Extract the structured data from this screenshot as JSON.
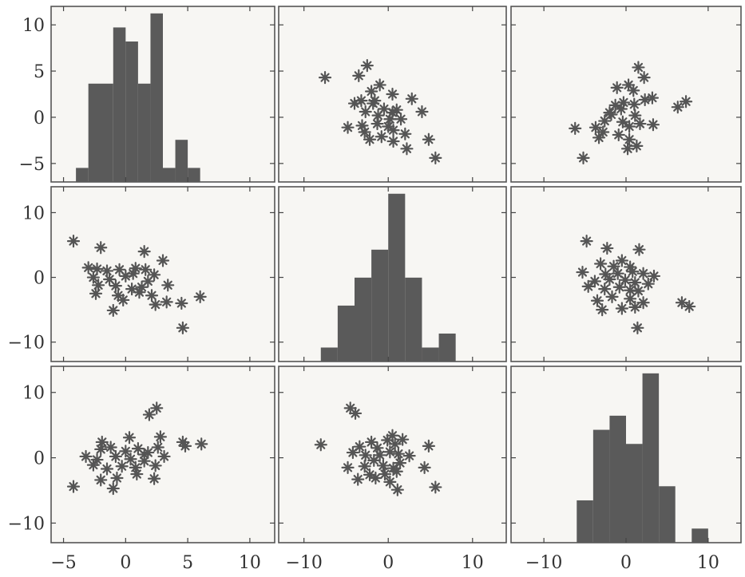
{
  "chart_data": {
    "type": "scatter",
    "grid": false,
    "colors": {
      "bars": "#5a5a5a",
      "markers": "#555555",
      "frame": "#555555",
      "panel_bg": "#f7f6f3"
    },
    "marker": "asterisk",
    "columns": [
      {
        "xlim": [
          -6,
          12
        ],
        "xticks": [
          -5,
          0,
          5,
          10
        ],
        "xtick_labels": [
          "−5",
          "0",
          "5",
          "10"
        ]
      },
      {
        "xlim": [
          -13,
          14
        ],
        "xticks": [
          -10,
          0,
          10
        ],
        "xtick_labels": [
          "−10",
          "0",
          "10"
        ]
      },
      {
        "xlim": [
          -14,
          14
        ],
        "xticks": [
          -10,
          0,
          10
        ],
        "xtick_labels": [
          "−10",
          "0",
          "10"
        ]
      }
    ],
    "rows": [
      {
        "ylim": [
          -7,
          12
        ],
        "yticks": [
          -5,
          0,
          5,
          10
        ],
        "ytick_labels": [
          "−5",
          "0",
          "5",
          "10"
        ]
      },
      {
        "ylim": [
          -13,
          14
        ],
        "yticks": [
          -10,
          0,
          10
        ],
        "ytick_labels": [
          "−10",
          "0",
          "10"
        ]
      },
      {
        "ylim": [
          -13,
          14
        ],
        "yticks": [
          -10,
          0,
          10
        ],
        "ytick_labels": [
          "−10",
          "0",
          "10"
        ]
      }
    ],
    "panels": [
      {
        "row": 0,
        "col": 0,
        "type": "histogram",
        "bins": [
          [
            -4,
            -3,
            1
          ],
          [
            -3,
            -1,
            7
          ],
          [
            -1,
            0,
            11
          ],
          [
            0,
            1,
            10
          ],
          [
            1,
            2,
            7
          ],
          [
            2,
            3,
            12
          ],
          [
            3,
            4,
            1
          ],
          [
            4,
            5,
            3
          ],
          [
            5,
            6,
            1
          ]
        ]
      },
      {
        "row": 0,
        "col": 1,
        "type": "scatter",
        "points": [
          [
            -7.5,
            4.3
          ],
          [
            -3.5,
            4.5
          ],
          [
            -2.5,
            5.6
          ],
          [
            -1,
            3.5
          ],
          [
            -2,
            2.8
          ],
          [
            -1.8,
            1.5
          ],
          [
            0.5,
            2.5
          ],
          [
            2.8,
            2
          ],
          [
            4,
            0.6
          ],
          [
            -4,
            1.5
          ],
          [
            -3.2,
            1.8
          ],
          [
            -2.7,
            0.6
          ],
          [
            -1.2,
            0.2
          ],
          [
            -0.5,
            0.9
          ],
          [
            0.5,
            0.5
          ],
          [
            1.5,
            -0.2
          ],
          [
            -4.8,
            -1.1
          ],
          [
            -2.8,
            -1.6
          ],
          [
            -1.3,
            -0.7
          ],
          [
            0,
            -1
          ],
          [
            0.6,
            -1.4
          ],
          [
            2,
            -1.8
          ],
          [
            -2.2,
            -2.4
          ],
          [
            -0.8,
            -2.1
          ],
          [
            0.6,
            -2.6
          ],
          [
            2.2,
            -3.4
          ],
          [
            4.8,
            -2.4
          ],
          [
            5.6,
            -4.4
          ],
          [
            -1.6,
            1.8
          ],
          [
            0.2,
            -0.2
          ],
          [
            1,
            0.8
          ],
          [
            -3.1,
            -0.9
          ]
        ]
      },
      {
        "row": 0,
        "col": 2,
        "type": "scatter",
        "points": [
          [
            1.5,
            5.4
          ],
          [
            2.2,
            4.3
          ],
          [
            0.3,
            3.5
          ],
          [
            -1.1,
            3.2
          ],
          [
            0.9,
            2.9
          ],
          [
            2.3,
            1.9
          ],
          [
            3.2,
            2.1
          ],
          [
            -1.3,
            1.3
          ],
          [
            -0.3,
            1.6
          ],
          [
            -0.6,
            0.9
          ],
          [
            1,
            1.4
          ],
          [
            6.3,
            1.1
          ],
          [
            7.3,
            1.7
          ],
          [
            -6.2,
            -1.2
          ],
          [
            -3.7,
            -1.1
          ],
          [
            -2.6,
            -0.4
          ],
          [
            -1.8,
            0.3
          ],
          [
            -0.4,
            -0.5
          ],
          [
            0.4,
            -1
          ],
          [
            1.7,
            -0.7
          ],
          [
            3.3,
            -0.8
          ],
          [
            -3.3,
            -2.2
          ],
          [
            -0.9,
            -1.9
          ],
          [
            0.4,
            -2.4
          ],
          [
            1.3,
            -3.1
          ],
          [
            -5.2,
            -4.4
          ],
          [
            -2,
            0.5
          ],
          [
            1.1,
            0.2
          ],
          [
            -2.8,
            -1.6
          ],
          [
            0.2,
            -3.4
          ]
        ]
      },
      {
        "row": 1,
        "col": 0,
        "type": "scatter",
        "points": [
          [
            -4.2,
            5.6
          ],
          [
            -2,
            4.6
          ],
          [
            1.5,
            4
          ],
          [
            3,
            2.6
          ],
          [
            -3,
            1.5
          ],
          [
            -2.3,
            1.3
          ],
          [
            -1.5,
            1
          ],
          [
            -0.5,
            1.2
          ],
          [
            0.8,
            1.4
          ],
          [
            1.6,
            1.2
          ],
          [
            -2.6,
            0
          ],
          [
            -1.3,
            -0.3
          ],
          [
            0,
            0.2
          ],
          [
            0.6,
            0.6
          ],
          [
            2.3,
            0.4
          ],
          [
            -2.2,
            -1.2
          ],
          [
            -0.8,
            -1.3
          ],
          [
            0.5,
            -1.8
          ],
          [
            1.3,
            -1.5
          ],
          [
            3.4,
            -1.2
          ],
          [
            -2.4,
            -2.5
          ],
          [
            -0.6,
            -2.8
          ],
          [
            1.1,
            -2.3
          ],
          [
            2.1,
            -2.8
          ],
          [
            3.3,
            -3.8
          ],
          [
            4.5,
            -4
          ],
          [
            6,
            -3
          ],
          [
            -1,
            -5.1
          ],
          [
            2.4,
            -4.2
          ],
          [
            4.6,
            -7.8
          ],
          [
            -0.2,
            -3.5
          ],
          [
            1.8,
            -0.6
          ]
        ]
      },
      {
        "row": 1,
        "col": 1,
        "type": "histogram",
        "bins": [
          [
            -8,
            -6,
            1
          ],
          [
            -6,
            -4,
            4
          ],
          [
            -4,
            -2,
            6
          ],
          [
            -2,
            0,
            8
          ],
          [
            0,
            2,
            12
          ],
          [
            2,
            4,
            6
          ],
          [
            4,
            6,
            1
          ],
          [
            6,
            8,
            2
          ]
        ]
      },
      {
        "row": 1,
        "col": 2,
        "type": "scatter",
        "points": [
          [
            -4.8,
            5.6
          ],
          [
            -2.3,
            4.5
          ],
          [
            1.6,
            4.3
          ],
          [
            -0.5,
            2.6
          ],
          [
            -3.1,
            2.1
          ],
          [
            -1.5,
            1.7
          ],
          [
            0.5,
            1.6
          ],
          [
            -5.3,
            0.8
          ],
          [
            -2.5,
            0.5
          ],
          [
            -1,
            0.6
          ],
          [
            0.8,
            0.9
          ],
          [
            2.1,
            0.6
          ],
          [
            3.4,
            0.2
          ],
          [
            -3.8,
            -0.6
          ],
          [
            -2,
            -0.3
          ],
          [
            -0.1,
            -0.4
          ],
          [
            1.1,
            -0.8
          ],
          [
            2.7,
            -1
          ],
          [
            -4.6,
            -1.4
          ],
          [
            -2.6,
            -1.8
          ],
          [
            -0.8,
            -1.5
          ],
          [
            0.5,
            -2
          ],
          [
            1.5,
            -2.1
          ],
          [
            -3.5,
            -3.6
          ],
          [
            -1.7,
            -3
          ],
          [
            0.5,
            -3.3
          ],
          [
            2.1,
            -3.9
          ],
          [
            -2.9,
            -5
          ],
          [
            -0.5,
            -4.8
          ],
          [
            1.1,
            -4.6
          ],
          [
            6.8,
            -3.9
          ],
          [
            7.7,
            -4.5
          ],
          [
            1.4,
            -7.8
          ]
        ]
      },
      {
        "row": 2,
        "col": 0,
        "type": "scatter",
        "points": [
          [
            2.5,
            7.6
          ],
          [
            1.9,
            6.6
          ],
          [
            -1.9,
            2.4
          ],
          [
            0.3,
            3.1
          ],
          [
            2.8,
            3.2
          ],
          [
            -2,
            1.3
          ],
          [
            -1.2,
            1.6
          ],
          [
            0,
            1
          ],
          [
            1,
            1.4
          ],
          [
            1.8,
            0.8
          ],
          [
            2.6,
            1.6
          ],
          [
            4.6,
            2.4
          ],
          [
            6.1,
            2.1
          ],
          [
            4.8,
            1.8
          ],
          [
            -3.2,
            0.2
          ],
          [
            -2.3,
            -0.3
          ],
          [
            -0.8,
            0.2
          ],
          [
            0.4,
            -0.2
          ],
          [
            1.5,
            0.5
          ],
          [
            3.1,
            0.2
          ],
          [
            -2.6,
            -1.1
          ],
          [
            -1.5,
            -1.7
          ],
          [
            -0.3,
            -1.3
          ],
          [
            0.8,
            -1.5
          ],
          [
            2.4,
            -1.2
          ],
          [
            -4.2,
            -4.4
          ],
          [
            -2,
            -3.4
          ],
          [
            -0.7,
            -3.1
          ],
          [
            0.9,
            -2.5
          ],
          [
            2.3,
            -3.2
          ],
          [
            -1,
            -4.7
          ],
          [
            1.5,
            -0.5
          ]
        ]
      },
      {
        "row": 2,
        "col": 1,
        "type": "scatter",
        "points": [
          [
            -4.5,
            7.6
          ],
          [
            -3.9,
            6.8
          ],
          [
            -8,
            2
          ],
          [
            -2,
            2.4
          ],
          [
            -3.4,
            1.7
          ],
          [
            -1.3,
            1.5
          ],
          [
            -0.1,
            2.7
          ],
          [
            0.8,
            2.1
          ],
          [
            1.7,
            2.8
          ],
          [
            4.8,
            1.8
          ],
          [
            -4.2,
            0.8
          ],
          [
            -2.7,
            0.4
          ],
          [
            -1,
            0.4
          ],
          [
            0.2,
            0.9
          ],
          [
            1.2,
            0.6
          ],
          [
            2.5,
            0.3
          ],
          [
            -4.8,
            -1.5
          ],
          [
            -2.8,
            -1.3
          ],
          [
            -1.7,
            -0.4
          ],
          [
            -0.6,
            -1.2
          ],
          [
            0.6,
            -1.6
          ],
          [
            1.4,
            -0.8
          ],
          [
            -3.6,
            -3.3
          ],
          [
            -2.2,
            -2.6
          ],
          [
            -0.4,
            -2.5
          ],
          [
            1,
            -2.1
          ],
          [
            4.3,
            -1.5
          ],
          [
            0.2,
            -3.7
          ],
          [
            1.1,
            -4.9
          ],
          [
            5.6,
            -4.5
          ],
          [
            -1.5,
            -3.1
          ],
          [
            0.5,
            3.4
          ]
        ]
      },
      {
        "row": 2,
        "col": 2,
        "type": "histogram",
        "bins": [
          [
            -6,
            -4,
            3
          ],
          [
            -4,
            -2,
            8
          ],
          [
            -2,
            0,
            9
          ],
          [
            0,
            2,
            7
          ],
          [
            2,
            4,
            12
          ],
          [
            4,
            6,
            4
          ],
          [
            8,
            10,
            1
          ]
        ]
      }
    ],
    "notes": "The figure prints only tick labels; no title, axis labels or legend."
  }
}
